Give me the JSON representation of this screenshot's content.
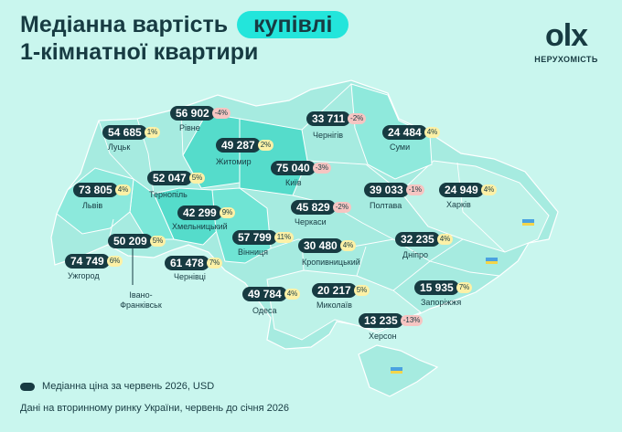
{
  "title": {
    "line1": "Медіанна вартість",
    "highlight": "купівлі",
    "line2": "1-кімнатної квартири"
  },
  "brand": {
    "logo": "olx",
    "subtitle": "НЕРУХОМІСТЬ"
  },
  "legend": "Медіанна ціна за червень 2026, USD",
  "note": "Дані на вторинному ринку України, червень до січня 2026",
  "colors": {
    "sea_bg": "#c9f6ee",
    "dark": "#173b42",
    "accent": "#23e5db",
    "up": "#fdf1a6",
    "down": "#f6c5c2"
  },
  "cities": [
    {
      "name": "Луцьк",
      "price": "54 685",
      "change": "1%",
      "dir": "up"
    },
    {
      "name": "Рівне",
      "price": "56 902",
      "change": "-4%",
      "dir": "down"
    },
    {
      "name": "Житомир",
      "price": "49 287",
      "change": "2%",
      "dir": "up"
    },
    {
      "name": "Київ",
      "price": "75 040",
      "change": "-3%",
      "dir": "down"
    },
    {
      "name": "Чернігів",
      "price": "33 711",
      "change": "-2%",
      "dir": "down"
    },
    {
      "name": "Суми",
      "price": "24 484",
      "change": "4%",
      "dir": "up"
    },
    {
      "name": "Львів",
      "price": "73 805",
      "change": "4%",
      "dir": "up"
    },
    {
      "name": "Тернопіль",
      "price": "52 047",
      "change": "5%",
      "dir": "up"
    },
    {
      "name": "Хмельницький",
      "price": "42 299",
      "change": "9%",
      "dir": "up"
    },
    {
      "name": "Черкаси",
      "price": "45 829",
      "change": "-2%",
      "dir": "down"
    },
    {
      "name": "Полтава",
      "price": "39 033",
      "change": "-1%",
      "dir": "down"
    },
    {
      "name": "Харків",
      "price": "24 949",
      "change": "4%",
      "dir": "up"
    },
    {
      "name": "Івано-Франківськ",
      "price": "50 209",
      "change": "5%",
      "dir": "up"
    },
    {
      "name": "Вінниця",
      "price": "57 799",
      "change": "11%",
      "dir": "up"
    },
    {
      "name": "Кропивницький",
      "price": "30 480",
      "change": "4%",
      "dir": "up"
    },
    {
      "name": "Дніпро",
      "price": "32 235",
      "change": "4%",
      "dir": "up"
    },
    {
      "name": "Ужгород",
      "price": "74 749",
      "change": "6%",
      "dir": "up"
    },
    {
      "name": "Чернівці",
      "price": "61 478",
      "change": "7%",
      "dir": "up"
    },
    {
      "name": "Одеса",
      "price": "49 784",
      "change": "4%",
      "dir": "up"
    },
    {
      "name": "Миколаїв",
      "price": "20 217",
      "change": "5%",
      "dir": "up"
    },
    {
      "name": "Запоріжжя",
      "price": "15 935",
      "change": "7%",
      "dir": "up"
    },
    {
      "name": "Херсон",
      "price": "13 235",
      "change": "-13%",
      "dir": "down"
    }
  ]
}
